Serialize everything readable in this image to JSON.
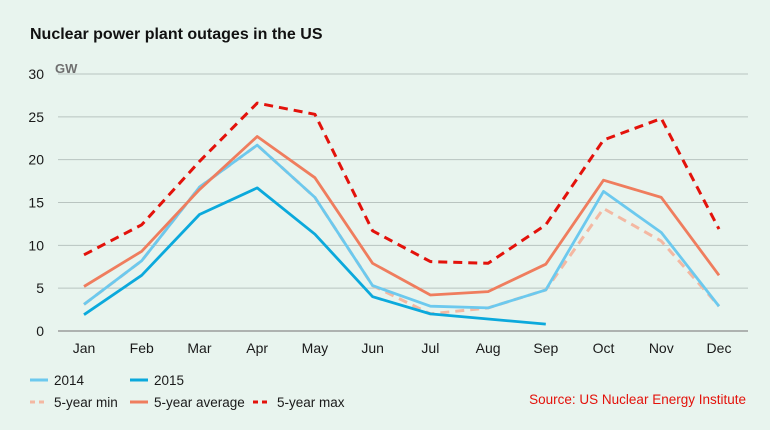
{
  "chart_data": {
    "type": "line",
    "title": "Nuclear power plant outages in the US",
    "unit_label": "GW",
    "source": "Source: US Nuclear Energy Institute",
    "categories": [
      "Jan",
      "Feb",
      "Mar",
      "Apr",
      "May",
      "Jun",
      "Jul",
      "Aug",
      "Sep",
      "Oct",
      "Nov",
      "Dec"
    ],
    "ylim": [
      0,
      30
    ],
    "yticks": [
      0,
      5,
      10,
      15,
      20,
      25,
      30
    ],
    "grid": true,
    "legend_placement": "bottom-left",
    "series": [
      {
        "name": "2014",
        "color": "#6cc9ee",
        "dash": "solid",
        "values": [
          3.1,
          8.2,
          16.8,
          21.7,
          15.6,
          5.3,
          2.9,
          2.7,
          4.8,
          16.3,
          11.5,
          2.9
        ]
      },
      {
        "name": "2015",
        "color": "#0ba9dc",
        "dash": "solid",
        "values": [
          1.9,
          6.5,
          13.6,
          16.7,
          11.3,
          4.0,
          2.0,
          1.4,
          0.8,
          null,
          null,
          null
        ]
      },
      {
        "name": "5-year min",
        "color": "#f4b8a2",
        "dash": "dashed",
        "values": [
          3.1,
          8.2,
          16.8,
          21.7,
          15.6,
          5.3,
          2.0,
          2.7,
          4.8,
          14.3,
          10.5,
          2.9
        ]
      },
      {
        "name": "5-year average",
        "color": "#ef7d5e",
        "dash": "solid",
        "values": [
          5.2,
          9.3,
          16.5,
          22.7,
          17.9,
          7.9,
          4.2,
          4.6,
          7.8,
          17.6,
          15.6,
          6.5
        ]
      },
      {
        "name": "5-year max",
        "color": "#e3120b",
        "dash": "dashed",
        "values": [
          8.9,
          12.4,
          19.8,
          26.6,
          25.3,
          11.7,
          8.1,
          7.9,
          12.4,
          22.3,
          24.8,
          11.9
        ]
      }
    ]
  }
}
